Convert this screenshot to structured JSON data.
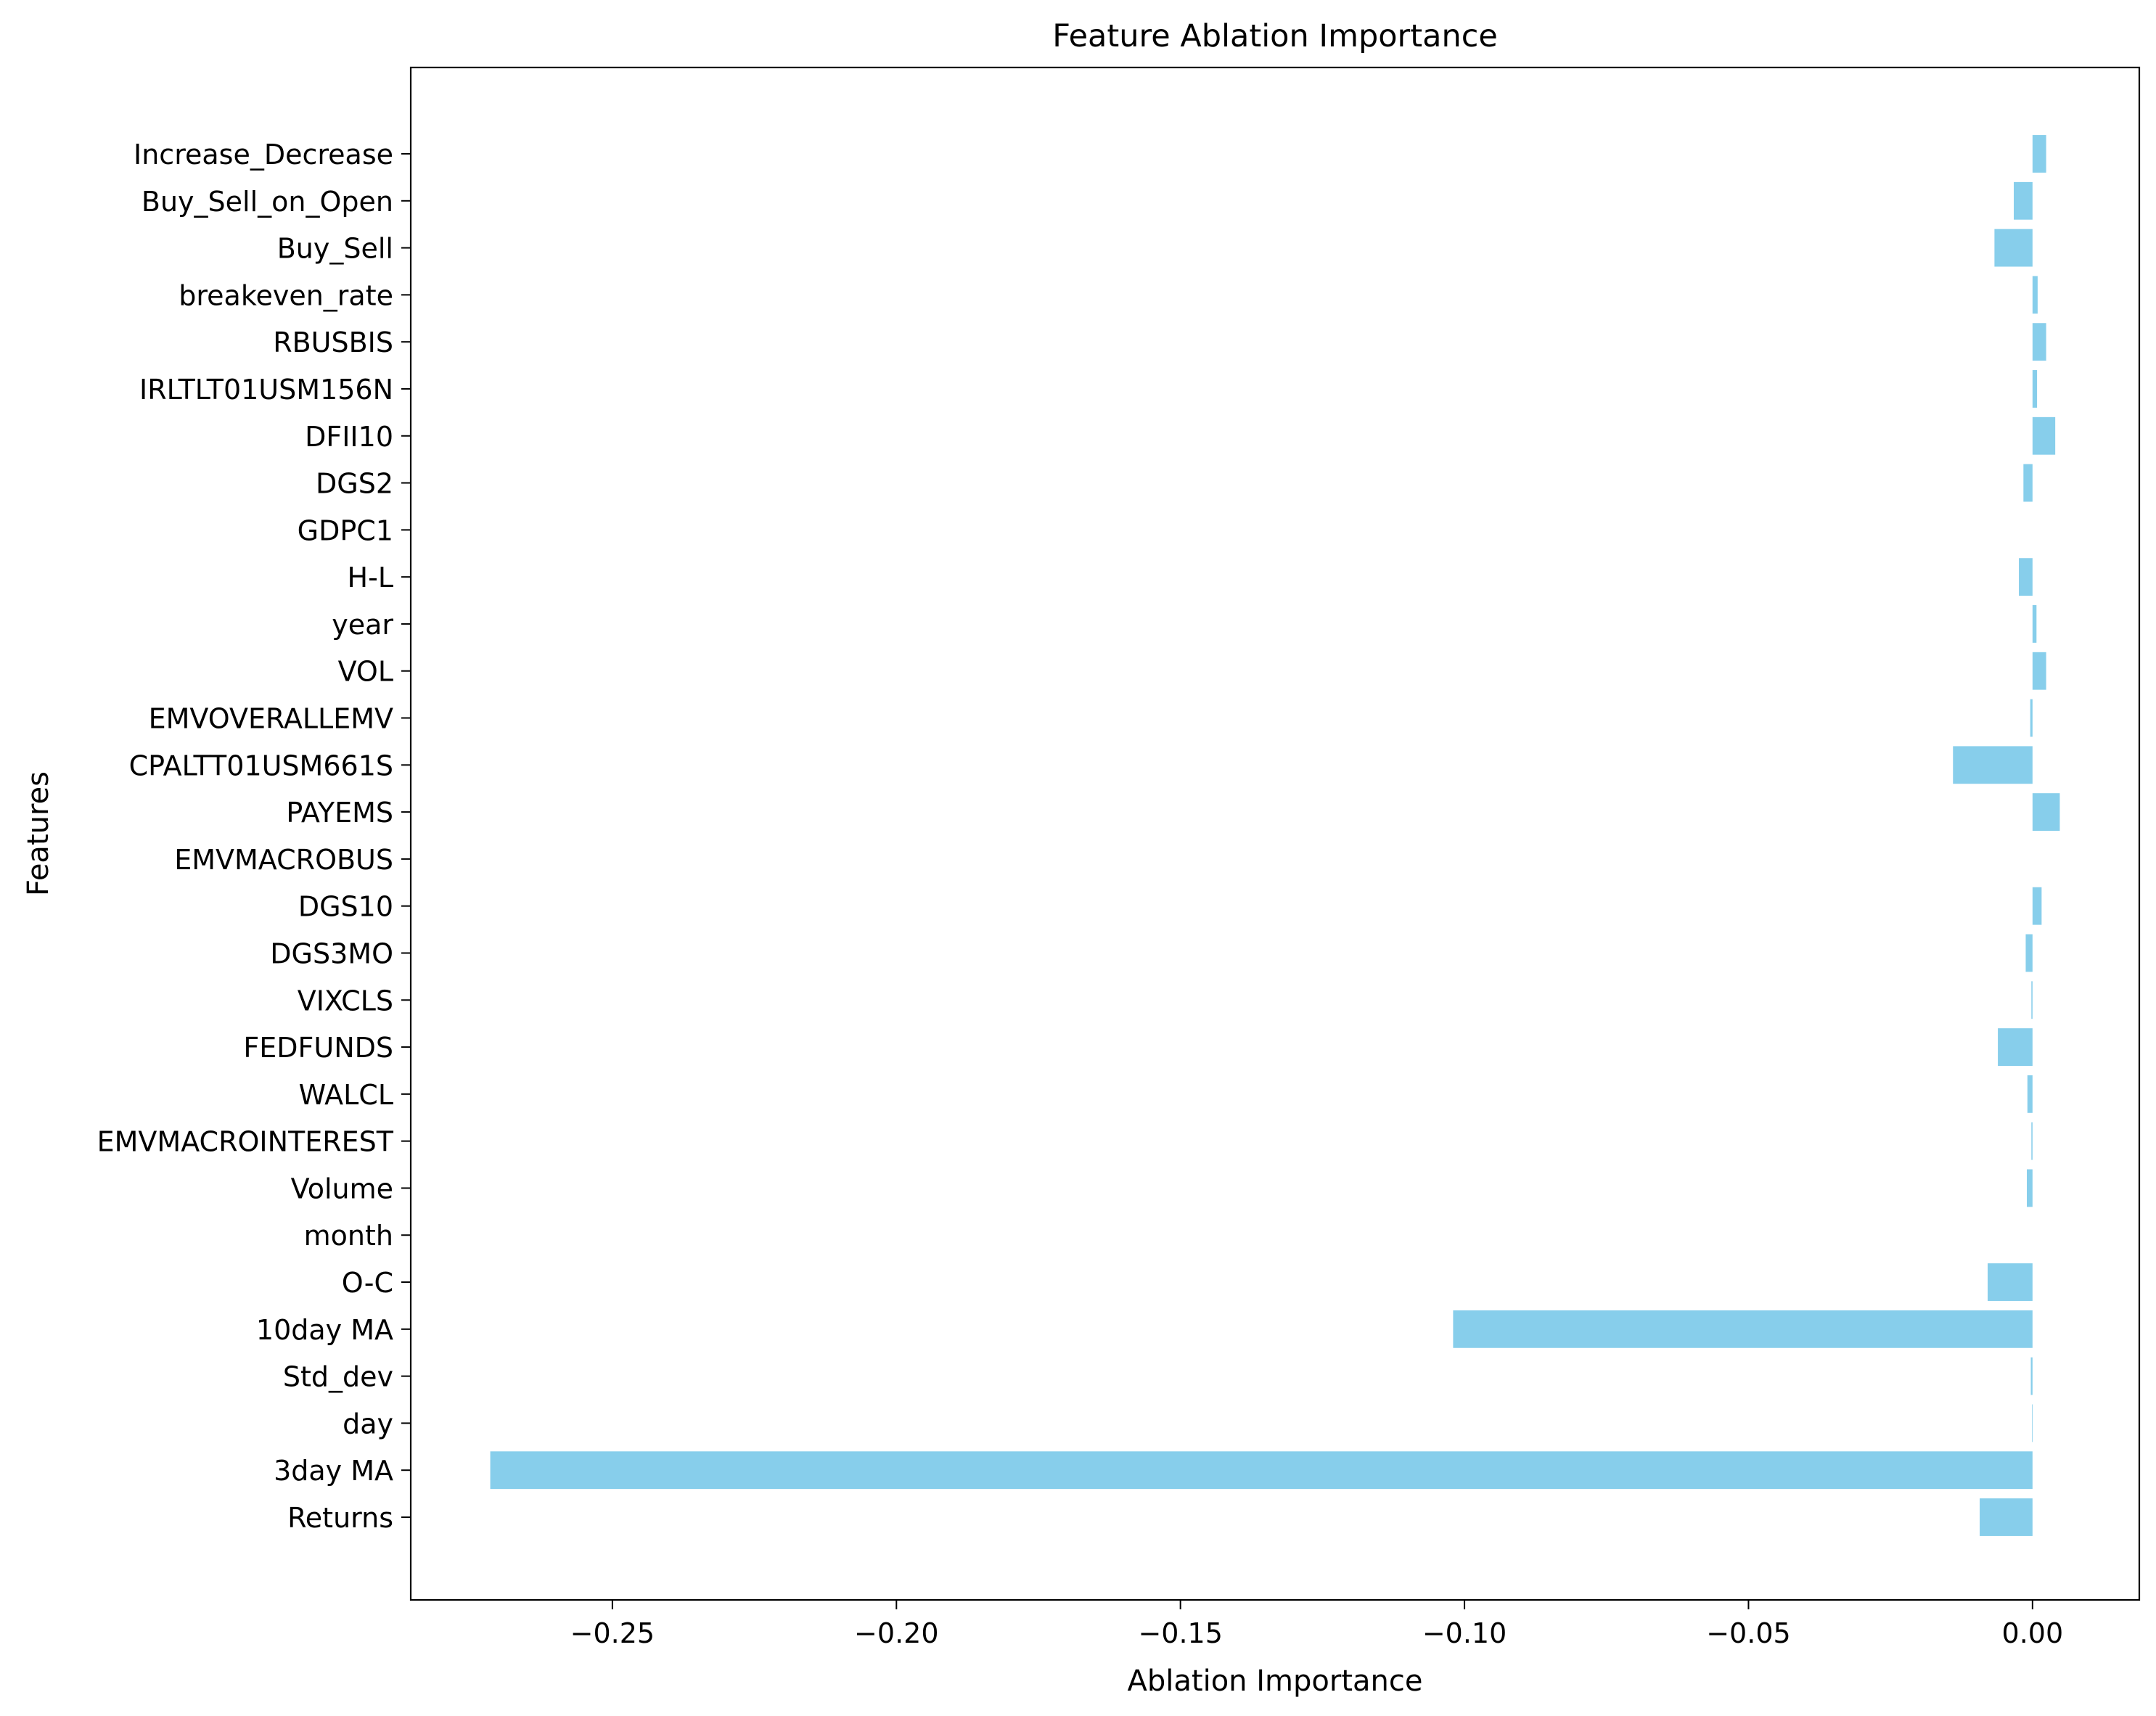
{
  "chart_data": {
    "type": "bar",
    "orientation": "horizontal",
    "title": "Feature Ablation Importance",
    "xlabel": "Ablation Importance",
    "ylabel": "Features",
    "xlim": [
      -0.2855,
      0.0188
    ],
    "xticks": [
      -0.25,
      -0.2,
      -0.15,
      -0.1,
      -0.05,
      0.0
    ],
    "xtick_labels": [
      "−0.25",
      "−0.20",
      "−0.15",
      "−0.10",
      "−0.05",
      "0.00"
    ],
    "grid": false,
    "bar_color": "#87ceeb",
    "categories": [
      "Returns",
      "3day MA",
      "day",
      "Std_dev",
      "10day MA",
      "O-C",
      "month",
      "Volume",
      "EMVMACROINTEREST",
      "WALCL",
      "FEDFUNDS",
      "VIXCLS",
      "DGS3MO",
      "DGS10",
      "EMVMACROBUS",
      "PAYEMS",
      "CPALTT01USM661S",
      "EMVOVERALLEMV",
      "VOL",
      "year",
      "H-L",
      "GDPC1",
      "DGS2",
      "DFII10",
      "IRLTLT01USM156N",
      "RBUSBIS",
      "breakeven_rate",
      "Buy_Sell",
      "Buy_Sell_on_Open",
      "Increase_Decrease"
    ],
    "values": [
      -0.0093,
      -0.2715,
      -0.0001,
      -0.0003,
      -0.102,
      -0.0079,
      0.0,
      -0.001,
      -0.0002,
      -0.0009,
      -0.0061,
      -0.0002,
      -0.0012,
      0.0016,
      0.0,
      0.0048,
      -0.014,
      -0.0004,
      0.0024,
      0.0007,
      -0.0024,
      0.0,
      -0.0016,
      0.004,
      0.0008,
      0.0024,
      0.0009,
      -0.0067,
      -0.0033,
      0.0024
    ]
  }
}
